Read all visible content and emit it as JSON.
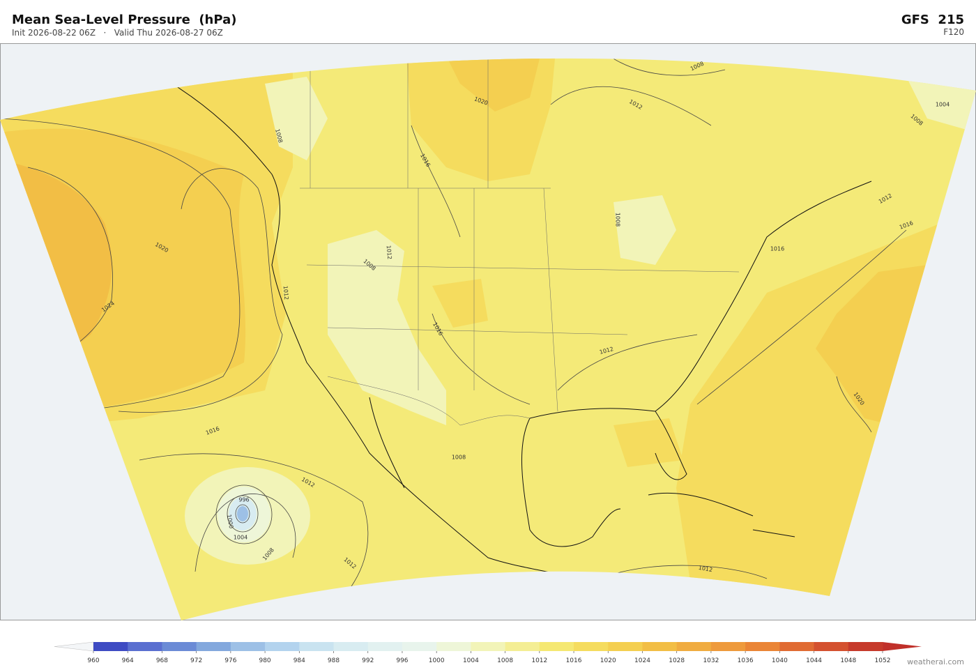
{
  "header": {
    "title": "Mean Sea-Level Pressure  (hPa)",
    "subtitle": "Init 2026-08-22 06Z   ·   Valid Thu 2026-08-27 06Z",
    "model": "GFS  215",
    "forecast_hour": "F120"
  },
  "map": {
    "contour_labels": [
      "1008",
      "1020",
      "1012",
      "1008",
      "1004",
      "1008",
      "1016",
      "1020",
      "1024",
      "1012",
      "1008",
      "1008",
      "1012",
      "1016",
      "1012",
      "1016",
      "1016",
      "1012",
      "1020",
      "1016",
      "1012",
      "1008",
      "996",
      "1000",
      "1004",
      "1008",
      "1012",
      "1012"
    ]
  },
  "colorbar": {
    "ticks": [
      960,
      964,
      968,
      972,
      976,
      980,
      984,
      988,
      992,
      996,
      1000,
      1004,
      1008,
      1012,
      1016,
      1020,
      1024,
      1028,
      1032,
      1036,
      1040,
      1044,
      1048,
      1052
    ],
    "colors": [
      "#3e4bc3",
      "#5a6fd0",
      "#6b8bd6",
      "#83a8dd",
      "#9dc0e6",
      "#b3d3ee",
      "#c9e3f0",
      "#d8ecf1",
      "#e2f1f0",
      "#e8f4ec",
      "#eef6d8",
      "#f2f4b8",
      "#f4ee94",
      "#f5e872",
      "#f5dc5e",
      "#f4cf50",
      "#f2be45",
      "#f0ac40",
      "#ee9a3c",
      "#ea8536",
      "#e06b33",
      "#d4512f",
      "#c63a2b"
    ],
    "under_color": "#f4f6f8",
    "over_color": "#c0302a"
  },
  "footer": {
    "attribution": "weatherai.com"
  }
}
